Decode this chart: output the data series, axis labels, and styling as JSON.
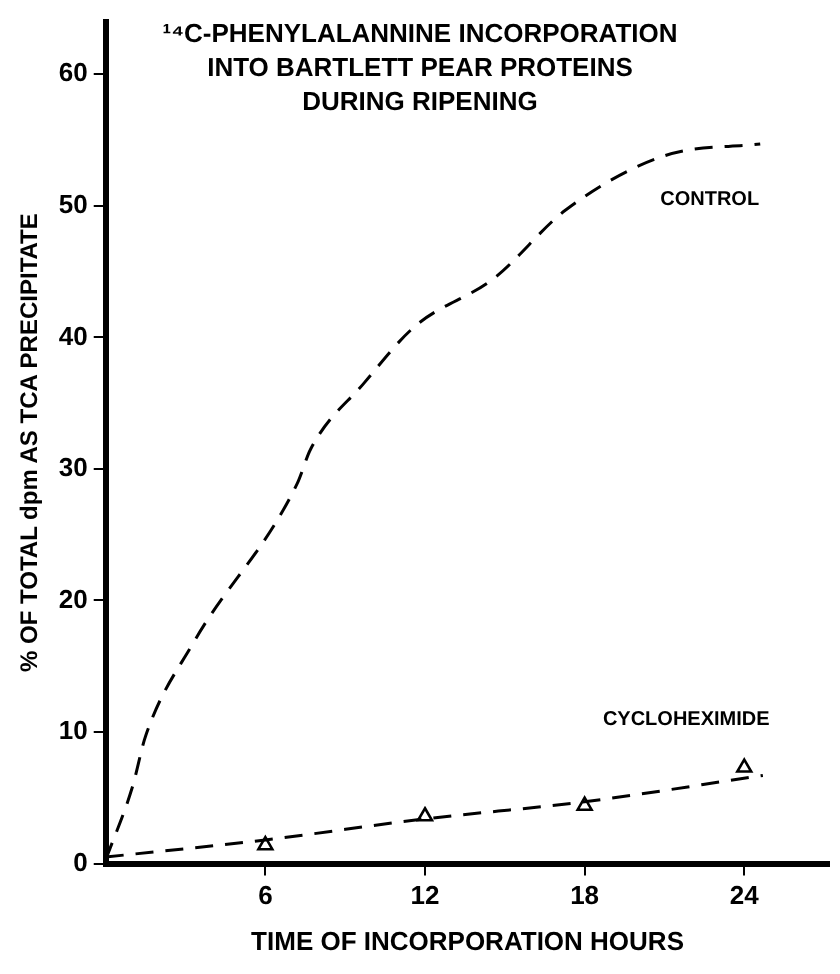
{
  "chart_data": {
    "type": "line",
    "title": "¹⁴C-PHENYLALANNINE INCORPORATION\nINTO BARTLETT PEAR PROTEINS\nDURING RIPENING",
    "xlabel": "TIME OF INCORPORATION HOURS",
    "ylabel": "% OF TOTAL dpm AS TCA PRECIPITATE",
    "xlim": [
      0,
      27.2
    ],
    "ylim": [
      0,
      64
    ],
    "xticks": [
      6,
      12,
      18,
      24
    ],
    "yticks": [
      0,
      10,
      20,
      30,
      40,
      50,
      60
    ],
    "grid": false,
    "legend": false,
    "series": [
      {
        "name": "CONTROL",
        "color": "#000000",
        "marker": "none",
        "line_style": "dashed",
        "x": [
          0,
          1,
          1.5,
          3.3,
          7.2,
          7.7,
          9.7,
          11.6,
          14.6,
          17.3,
          21,
          24.6
        ],
        "values": [
          0.3,
          5.8,
          9.7,
          16.8,
          28.9,
          31.5,
          36.5,
          40.8,
          44.5,
          49.7,
          53.8,
          54.7
        ]
      },
      {
        "name": "CYCLOHEXIMIDE",
        "color": "#000000",
        "marker": "none",
        "line_style": "dashed",
        "x": [
          0,
          6,
          12,
          18,
          24.7
        ],
        "values": [
          0.5,
          1.8,
          3.4,
          4.7,
          6.7
        ]
      },
      {
        "type": "scatter",
        "color": "#000000",
        "marker": "triangle",
        "x": [
          6,
          12,
          18,
          24
        ],
        "values": [
          1.4,
          3.6,
          4.4,
          7.3
        ]
      }
    ]
  }
}
